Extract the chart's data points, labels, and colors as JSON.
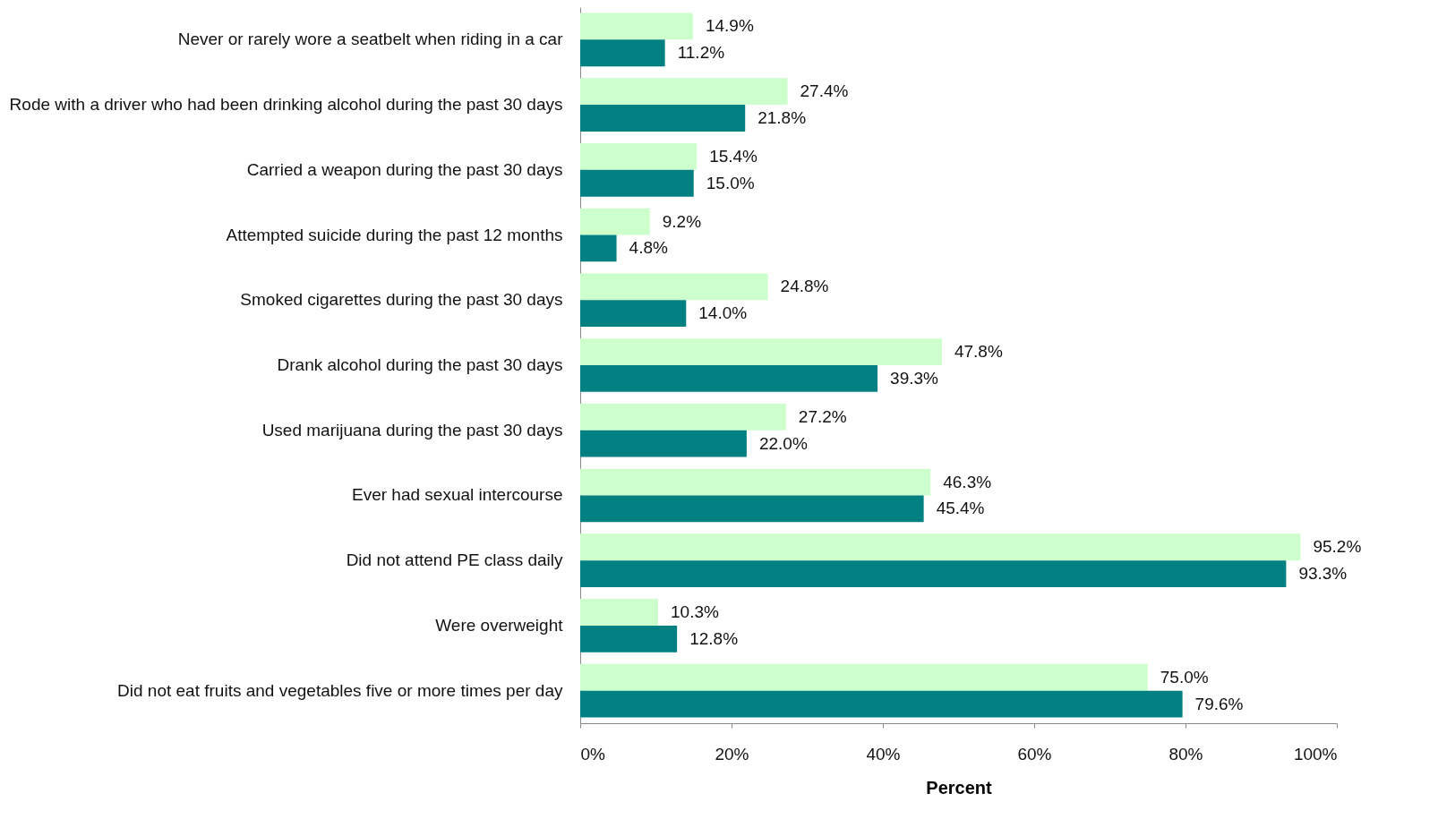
{
  "chart_data": {
    "type": "bar",
    "orientation": "horizontal",
    "xlabel": "Percent",
    "categories": [
      "Never or rarely wore a seatbelt when riding in a car",
      "Rode with a driver who had been drinking alcohol during the past 30 days",
      "Carried a weapon during the past 30 days",
      "Attempted suicide during the past 12 months",
      "Smoked cigarettes during the past 30 days",
      "Drank alcohol during the past 30 days",
      "Used marijuana during the past 30 days",
      "Ever had sexual intercourse",
      "Did not attend PE class daily",
      "Were overweight",
      "Did not eat fruits and vegetables five or more times per day"
    ],
    "series": [
      {
        "color": "#ccffcc",
        "values": [
          14.9,
          27.4,
          15.4,
          9.2,
          24.8,
          47.8,
          27.2,
          46.3,
          95.2,
          10.3,
          75.0
        ],
        "value_labels": [
          "14.9%",
          "27.4%",
          "15.4%",
          "9.2%",
          "24.8%",
          "47.8%",
          "27.2%",
          "46.3%",
          "95.2%",
          "10.3%",
          "75.0%"
        ]
      },
      {
        "color": "#008080",
        "values": [
          11.2,
          21.8,
          15.0,
          4.8,
          14.0,
          39.3,
          22.0,
          45.4,
          93.3,
          12.8,
          79.6
        ],
        "value_labels": [
          "11.2%",
          "21.8%",
          "15.0%",
          "4.8%",
          "14.0%",
          "39.3%",
          "22.0%",
          "45.4%",
          "93.3%",
          "12.8%",
          "79.6%"
        ]
      }
    ],
    "xlim": [
      0,
      100
    ],
    "xticks": [
      {
        "value": 0,
        "label": "0%"
      },
      {
        "value": 20,
        "label": "20%"
      },
      {
        "value": 40,
        "label": "40%"
      },
      {
        "value": 60,
        "label": "60%"
      },
      {
        "value": 80,
        "label": "80%"
      },
      {
        "value": 100,
        "label": "100%"
      }
    ]
  }
}
